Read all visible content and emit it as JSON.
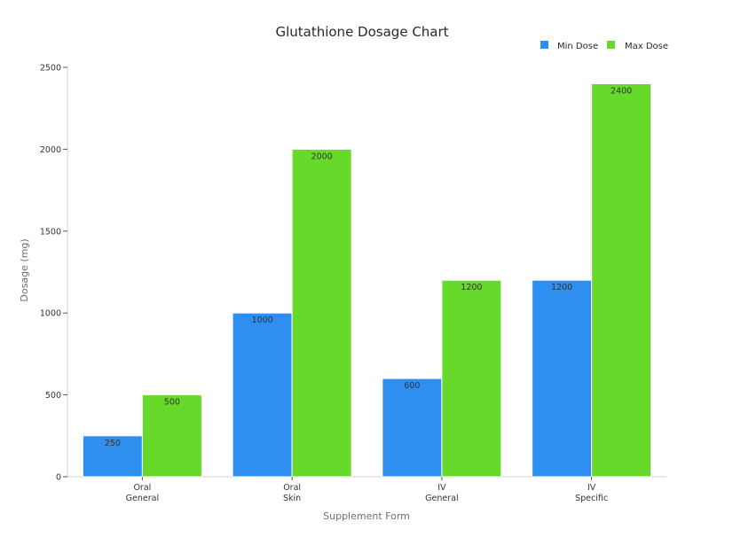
{
  "chart_data": {
    "type": "bar",
    "title": "Glutathione Dosage Chart",
    "xlabel": "Supplement Form",
    "ylabel": "Dosage (mg)",
    "categories": [
      [
        "Oral",
        "General"
      ],
      [
        "Oral",
        "Skin"
      ],
      [
        "IV",
        "General"
      ],
      [
        "IV",
        "Specific"
      ]
    ],
    "series": [
      {
        "name": "Min Dose",
        "color": "#2e8ff0",
        "values": [
          250,
          1000,
          600,
          1200
        ]
      },
      {
        "name": "Max Dose",
        "color": "#66d92b",
        "values": [
          500,
          2000,
          1200,
          2400
        ]
      }
    ],
    "ylim": [
      0,
      2500
    ],
    "yticks": [
      0,
      500,
      1000,
      1500,
      2000,
      2500
    ],
    "legend_position": "top-right",
    "grid": false
  }
}
